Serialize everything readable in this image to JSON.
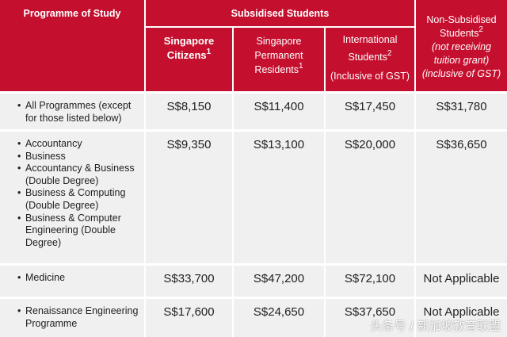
{
  "header": {
    "programme": "Programme of Study",
    "subsidised": "Subsidised Students",
    "citizens": {
      "line1": "Singapore",
      "line2": "Citizens",
      "sup": "1"
    },
    "pr": {
      "line1": "Singapore",
      "line2": "Permanent",
      "line3": "Residents",
      "sup": "1"
    },
    "intl": {
      "line1": "International",
      "line2": "Students",
      "sup": "2",
      "line3": "(Inclusive of GST)"
    },
    "nonsub": {
      "line1": "Non-Subsidised",
      "line2": "Students",
      "sup": "2",
      "line3": "(not receiving",
      "line4": "tuition grant)",
      "line5": "(inclusive of GST)"
    }
  },
  "rows": [
    {
      "programmes": [
        "All Programmes (except for those listed below)"
      ],
      "citizens": "S$8,150",
      "pr": "S$11,400",
      "intl": "S$17,450",
      "nonsub": "S$31,780"
    },
    {
      "programmes": [
        "Accountancy",
        "Business",
        "Accountancy & Business (Double Degree)",
        "Business & Computing (Double Degree)",
        "Business & Computer Engineering (Double Degree)"
      ],
      "citizens": "S$9,350",
      "pr": "S$13,100",
      "intl": "S$20,000",
      "nonsub": "S$36,650"
    },
    {
      "programmes": [
        "Medicine"
      ],
      "citizens": "S$33,700",
      "pr": "S$47,200",
      "intl": "S$72,100",
      "nonsub": "Not Applicable"
    },
    {
      "programmes": [
        "Renaissance Engineering Programme"
      ],
      "citizens": "S$17,600",
      "pr": "S$24,650",
      "intl": "S$37,650",
      "nonsub": "Not Applicable"
    }
  ],
  "watermark": "头条号 / 新加坡教育联盟",
  "colors": {
    "header": "#c50f2e",
    "body": "#f0f0f0"
  }
}
